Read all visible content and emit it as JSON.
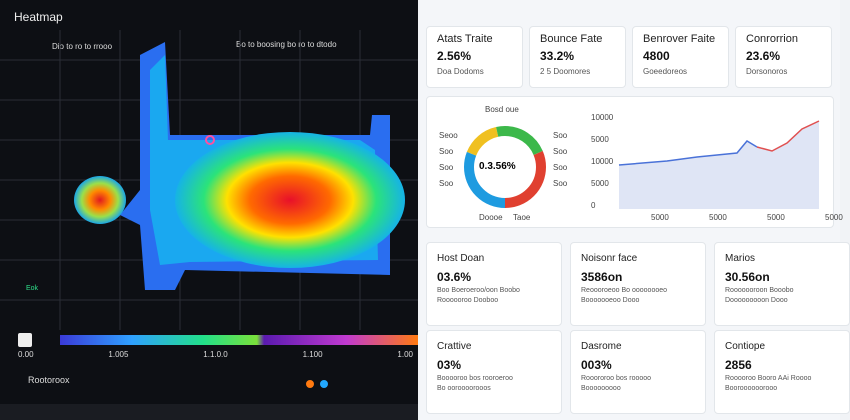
{
  "heatmap": {
    "title": "Heatmap",
    "legend_left": "Dio to ro to rrooo",
    "legend_right": "Bo to boosing bo ro to dtodo",
    "scale_labels": [
      "0.00",
      "1.005",
      "1.1.0.0",
      "1.100",
      "1.00"
    ],
    "footer": "Rootoroox",
    "side_label": "Eok"
  },
  "stats": [
    {
      "label": "Atats Traite",
      "value": "2.56%",
      "sub": "Doa Dodoms"
    },
    {
      "label": "Bounce Fate",
      "value": "33.2%",
      "sub": "2 5 Doomores"
    },
    {
      "label": "Benrover Faite",
      "value": "4800",
      "sub": "Goeedoreos"
    },
    {
      "label": "Conrorrion",
      "value": "23.6%",
      "sub": "Dorsonoros"
    }
  ],
  "donut": {
    "title": "Bosd oue",
    "center": "0.3.56%",
    "left": [
      "Seoo",
      "Soo",
      "Soo",
      "Soo"
    ],
    "right": [
      "Soo",
      "Soo",
      "Soo",
      "Soo"
    ],
    "bottom": [
      "Doooe",
      "Taoe"
    ]
  },
  "trend": {
    "y_labels": [
      "10000",
      "5000",
      "10000",
      "5000",
      "0"
    ],
    "x_labels": [
      "5000",
      "5000",
      "5000",
      "5000"
    ]
  },
  "cards": [
    {
      "title": "Host Doan",
      "value": "03.6%",
      "lines": [
        "Boo Boeroeroo/oon Boobo",
        "Roooooroo Dooboo"
      ]
    },
    {
      "title": "Noisonr face",
      "value": "3586on",
      "lines": [
        "Reoooroeoo Bo oooooooeo",
        "Booooooeoo Dooo"
      ]
    },
    {
      "title": "Marios",
      "value": "30.56on",
      "lines": [
        "Rooooooroon Booobo",
        "Dooooooooon Dooo"
      ]
    },
    {
      "title": "Crattive",
      "value": "03%",
      "lines": [
        "Booooroo bos rooroeroo",
        "Bo ooroooorooos"
      ]
    },
    {
      "title": "Dasrome",
      "value": "003%",
      "lines": [
        "Rooororoo bos rooooo",
        "Booooooooo"
      ]
    },
    {
      "title": "Contiope",
      "value": "2856",
      "lines": [
        "Rooooroo Booro AAi Roooo",
        "Booroooooorooo"
      ]
    }
  ]
}
